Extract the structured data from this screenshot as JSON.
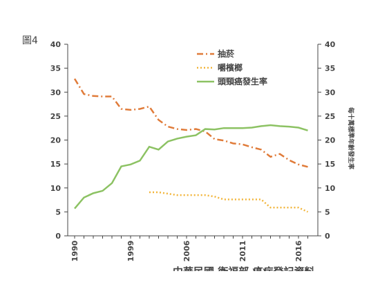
{
  "figure_label": "圖4",
  "chart_data": {
    "type": "line",
    "categories": [
      "1990",
      null,
      null,
      null,
      null,
      null,
      "1999",
      null,
      null,
      null,
      null,
      null,
      "2006",
      null,
      null,
      null,
      null,
      null,
      "2011",
      null,
      null,
      null,
      null,
      null,
      "2016",
      null
    ],
    "series": [
      {
        "name": "抽菸",
        "color": "#e07b39",
        "style": "dashdot",
        "values": [
          32.8,
          29.6,
          29.2,
          29.1,
          29.1,
          26.5,
          26.3,
          26.5,
          27.0,
          24.2,
          22.8,
          22.3,
          22.1,
          22.3,
          21.8,
          20.2,
          19.9,
          19.3,
          19.1,
          18.5,
          18.0,
          16.5,
          17.1,
          15.8,
          14.9,
          14.4
        ]
      },
      {
        "name": "嚼檳榔",
        "color": "#f2b53a",
        "style": "dotted",
        "values": [
          null,
          null,
          null,
          null,
          null,
          null,
          null,
          null,
          9.1,
          9.1,
          8.8,
          8.5,
          8.5,
          8.5,
          8.5,
          8.2,
          7.6,
          7.6,
          7.6,
          7.6,
          7.6,
          5.9,
          5.9,
          5.9,
          5.9,
          5.0
        ]
      },
      {
        "name": "頭頸癌發生率",
        "color": "#8cc263",
        "style": "solid",
        "values": [
          5.7,
          8.0,
          8.9,
          9.4,
          11.0,
          14.5,
          14.9,
          15.7,
          18.6,
          18.0,
          19.7,
          20.3,
          20.7,
          21.0,
          22.3,
          22.2,
          22.5,
          22.5,
          22.5,
          22.6,
          22.9,
          23.1,
          22.9,
          22.8,
          22.6,
          22.0
        ]
      }
    ],
    "ylim": [
      0,
      40
    ],
    "yticks": [
      0,
      5,
      10,
      15,
      20,
      25,
      30,
      35,
      40
    ],
    "y2lim": [
      0,
      40
    ],
    "y2ticks": [
      0,
      5,
      10,
      15,
      20,
      25,
      30,
      35,
      40
    ],
    "y2label": "每十萬標準年齡發生率",
    "source": "中華民國 衛福部 癌症登記資料",
    "legend": "top"
  }
}
